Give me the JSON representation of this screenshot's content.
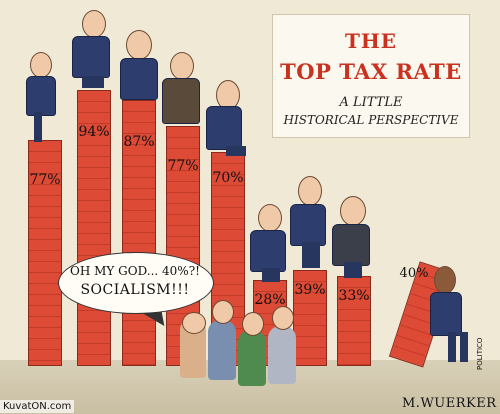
{
  "title": {
    "line1": "THE",
    "line2": "TOP TAX RATE",
    "subtitle1": "A LITTLE",
    "subtitle2": "HISTORICAL PERSPECTIVE"
  },
  "bars": [
    {
      "label": "77%"
    },
    {
      "label": "94%"
    },
    {
      "label": "87%"
    },
    {
      "label": "77%"
    },
    {
      "label": "70%"
    },
    {
      "label": "28%"
    },
    {
      "label": "39%"
    },
    {
      "label": "33%"
    }
  ],
  "falling_bar": {
    "label": "40%"
  },
  "speech_bubble": {
    "line1": "OH MY GOD... 40%?!",
    "line2": "SOCIALISM!!!"
  },
  "signature": "M.WUERKER",
  "publisher_mark": "POLITICO",
  "watermark": "KuvatON.com",
  "colors": {
    "bar": "#dd4b36",
    "title": "#c8321f",
    "background": "#efe9d6"
  }
}
